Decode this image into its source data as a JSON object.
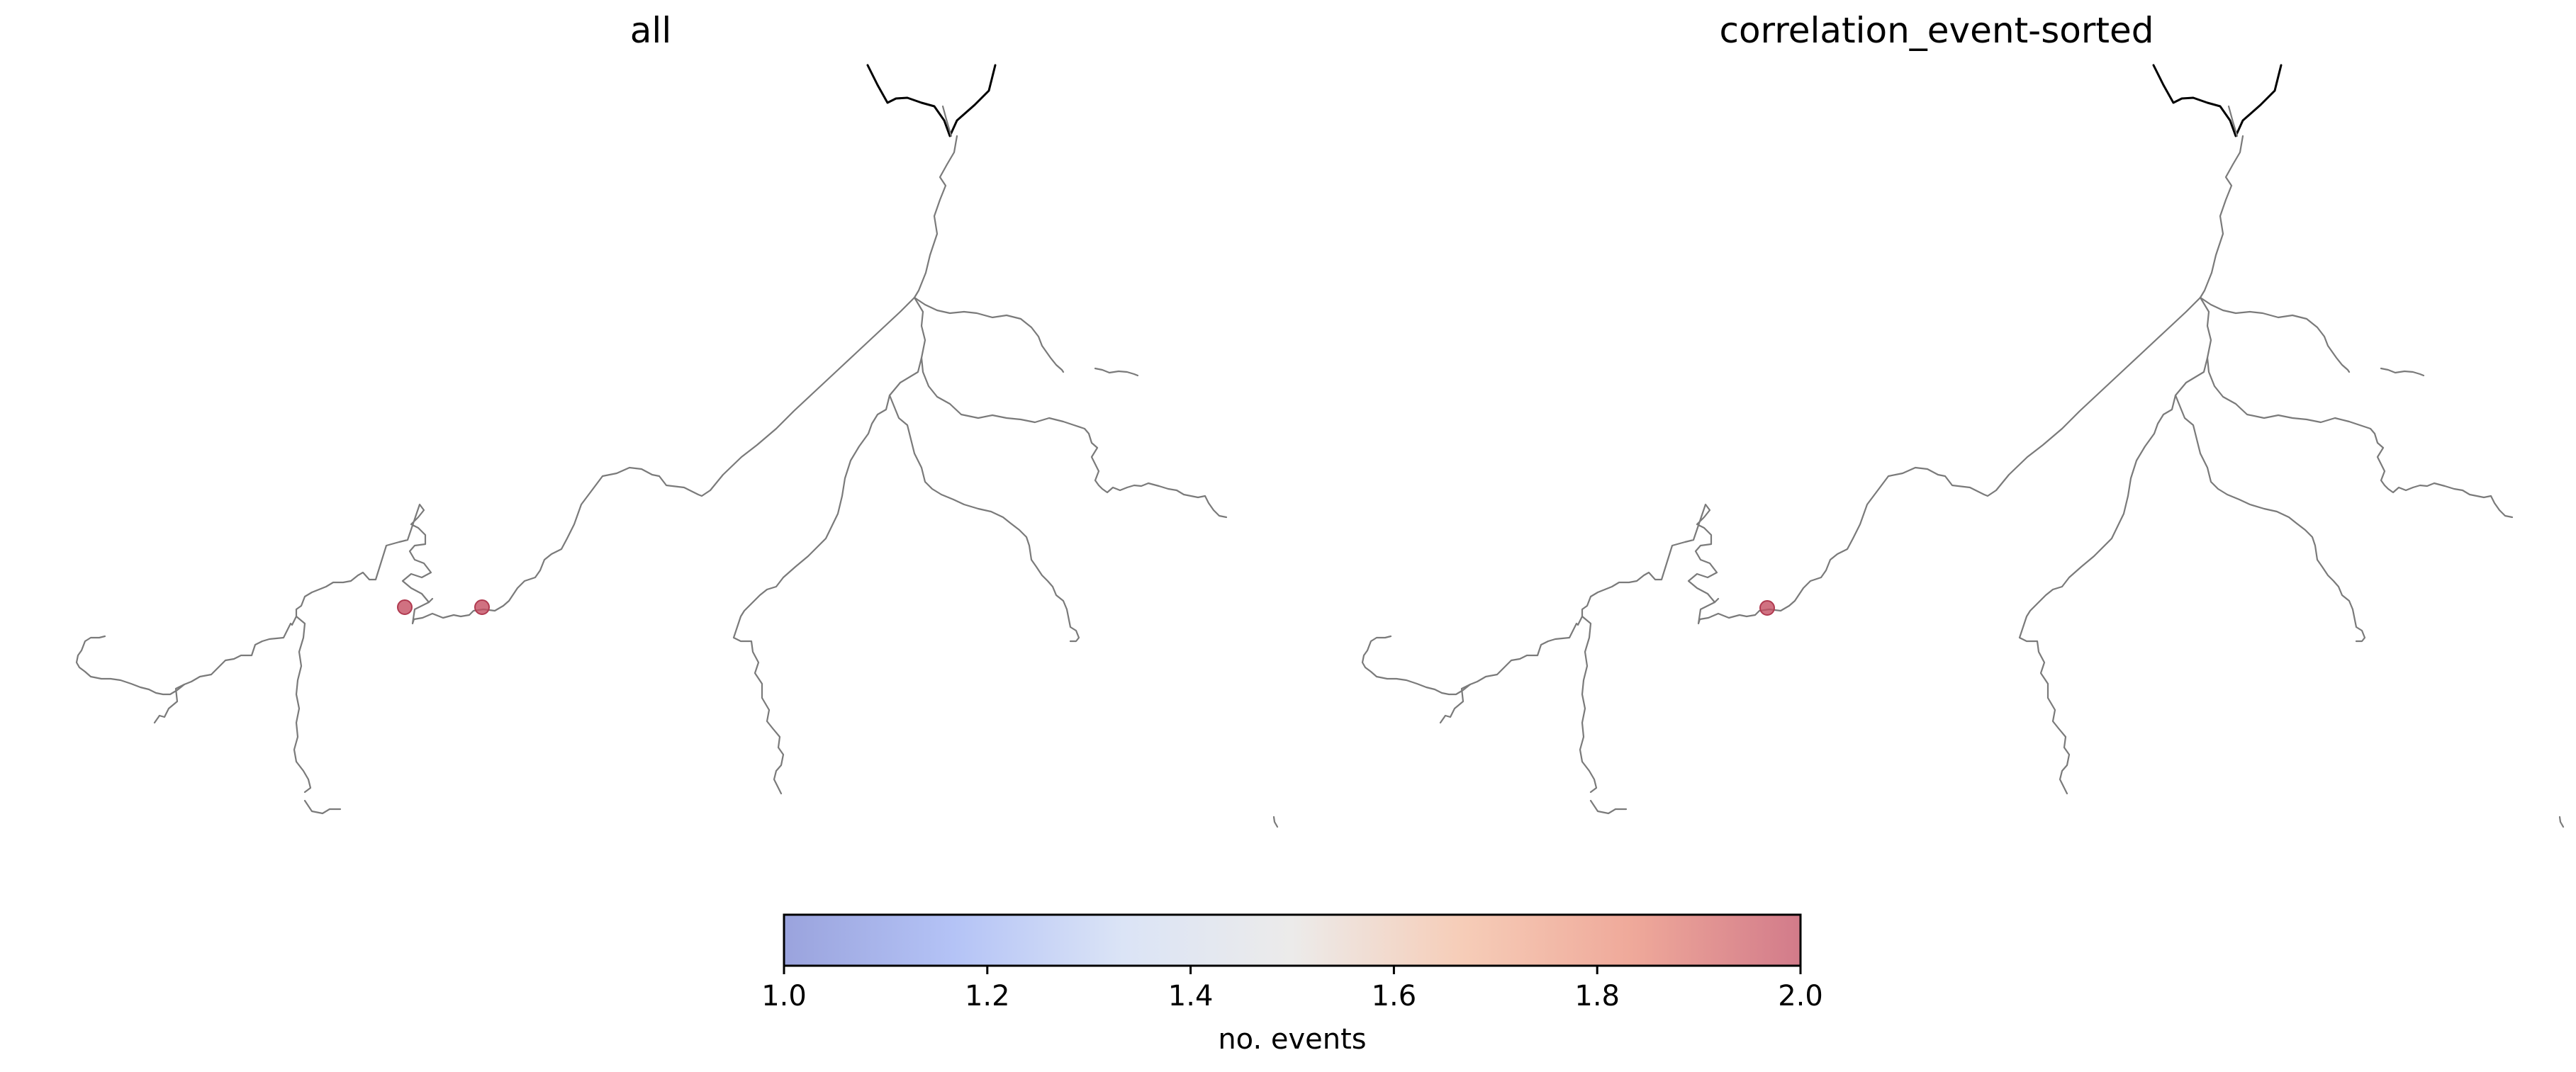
{
  "panels": [
    {
      "title": "all",
      "events": [
        {
          "id": "e1",
          "value": 2.0
        },
        {
          "id": "e2",
          "value": 2.0
        }
      ]
    },
    {
      "title": "correlation_event-sorted",
      "events": [
        {
          "id": "e1",
          "value": 2.0
        }
      ]
    }
  ],
  "colorbar": {
    "label": "no. events",
    "min": 1.0,
    "max": 2.0,
    "ticks": [
      "1.0",
      "1.2",
      "1.4",
      "1.6",
      "1.8",
      "2.0"
    ],
    "colormap": "coolwarm",
    "colors": [
      "#9aa3dd",
      "#b4c3f6",
      "#dbe4f6",
      "#ecebea",
      "#f6cdb8",
      "#efa99a",
      "#d27b8a"
    ]
  }
}
